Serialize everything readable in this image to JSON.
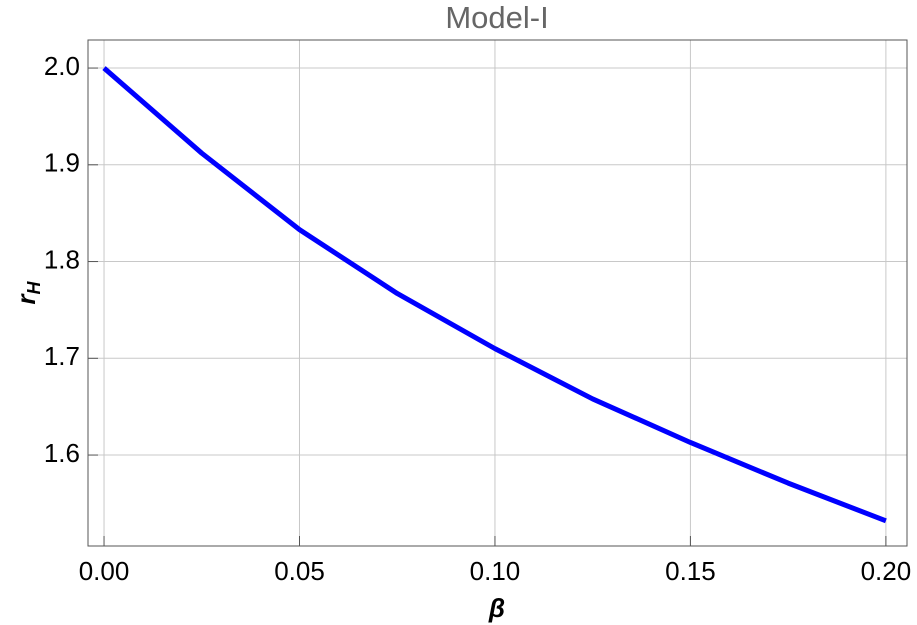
{
  "chart_data": {
    "type": "line",
    "title": "Model-I",
    "xlabel": "β",
    "ylabel": "r",
    "ylabel_subscript": "H",
    "x": [
      0,
      0.025,
      0.05,
      0.075,
      0.1,
      0.125,
      0.15,
      0.175,
      0.2
    ],
    "series": [
      {
        "color": "#0000ff",
        "values": [
          2.0,
          1.912,
          1.833,
          1.767,
          1.71,
          1.658,
          1.613,
          1.571,
          1.532
        ]
      }
    ],
    "xlim": [
      -0.0041,
      0.2054
    ],
    "ylim": [
      1.506,
      2.029
    ],
    "xticks": [
      {
        "value": 0,
        "label": "0.00"
      },
      0.05,
      {
        "value": 0.1,
        "label": "0.10"
      },
      0.15,
      {
        "value": 0.2,
        "label": "0.20"
      }
    ],
    "yticks": [
      1.6,
      1.7,
      1.8,
      1.9,
      {
        "value": 2,
        "label": "2.0"
      }
    ],
    "grid": true
  }
}
